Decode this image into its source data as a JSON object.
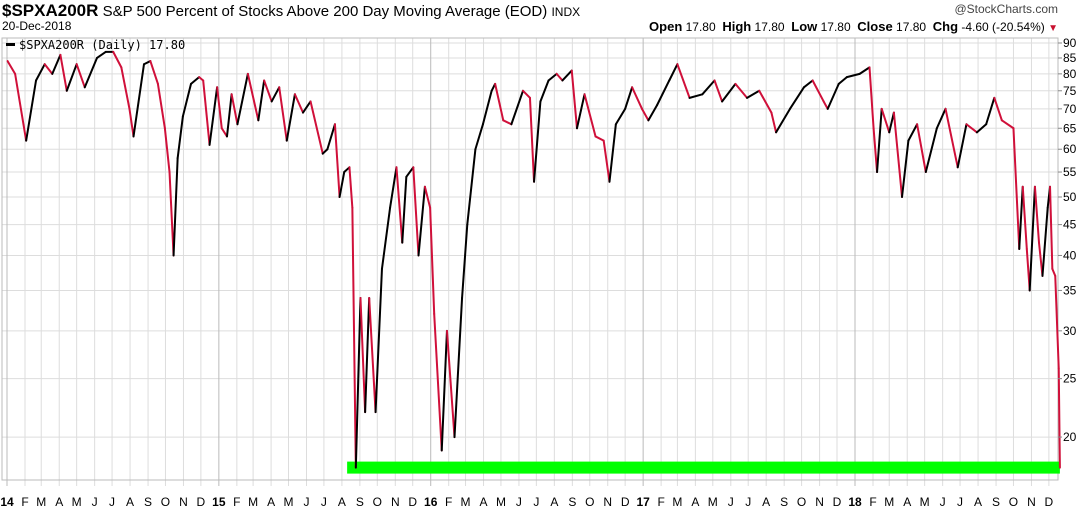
{
  "header": {
    "symbol": "$SPXA200R",
    "description": "S&P 500 Percent of Stocks Above 200 Day Moving Average (EOD)",
    "exchange": "INDX",
    "date": "20-Dec-2018",
    "copyright": "@StockCharts.com",
    "open_label": "Open",
    "open": "17.80",
    "high_label": "High",
    "high": "17.80",
    "low_label": "Low",
    "low": "17.80",
    "close_label": "Close",
    "close": "17.80",
    "chg_label": "Chg",
    "chg": "-4.60 (-20.54%)",
    "chg_direction": "down"
  },
  "legend": {
    "text": "$SPXA200R (Daily) 17.80"
  },
  "colors": {
    "up": "#000000",
    "down": "#d0103a",
    "band": "#00ff00",
    "grid": "#dddddd"
  },
  "chart_data": {
    "type": "line",
    "yscale": "log",
    "ylim": [
      16.5,
      92
    ],
    "xlim": [
      "2014-01-01",
      "2018-12-20"
    ],
    "grid": true,
    "legend_placement": "top-left",
    "yticks": [
      20,
      25,
      30,
      35,
      40,
      45,
      50,
      55,
      60,
      65,
      70,
      75,
      80,
      85,
      90
    ],
    "xtick_labels": [
      "14",
      "F",
      "M",
      "A",
      "M",
      "J",
      "J",
      "A",
      "S",
      "O",
      "N",
      "D",
      "15",
      "F",
      "M",
      "A",
      "M",
      "J",
      "J",
      "A",
      "S",
      "O",
      "N",
      "D",
      "16",
      "F",
      "M",
      "A",
      "M",
      "J",
      "J",
      "A",
      "S",
      "O",
      "N",
      "D",
      "17",
      "F",
      "M",
      "A",
      "M",
      "J",
      "J",
      "A",
      "S",
      "O",
      "N",
      "D",
      "18",
      "F",
      "M",
      "A",
      "M",
      "J",
      "J",
      "A",
      "S",
      "O",
      "N",
      "D"
    ],
    "band": {
      "value": 17.8,
      "from": "2015-08-10",
      "to": "2018-12-20"
    },
    "series": [
      {
        "points": [
          [
            "2014-01-02",
            84
          ],
          [
            "2014-01-15",
            80
          ],
          [
            "2014-02-03",
            62
          ],
          [
            "2014-02-20",
            78
          ],
          [
            "2014-03-07",
            83
          ],
          [
            "2014-03-20",
            80
          ],
          [
            "2014-04-03",
            86
          ],
          [
            "2014-04-14",
            75
          ],
          [
            "2014-05-01",
            83
          ],
          [
            "2014-05-15",
            76
          ],
          [
            "2014-06-05",
            85
          ],
          [
            "2014-06-20",
            87
          ],
          [
            "2014-07-03",
            87
          ],
          [
            "2014-07-17",
            82
          ],
          [
            "2014-07-31",
            70
          ],
          [
            "2014-08-07",
            63
          ],
          [
            "2014-08-25",
            83
          ],
          [
            "2014-09-05",
            84
          ],
          [
            "2014-09-18",
            77
          ],
          [
            "2014-09-30",
            65
          ],
          [
            "2014-10-08",
            55
          ],
          [
            "2014-10-15",
            40
          ],
          [
            "2014-10-22",
            58
          ],
          [
            "2014-10-31",
            68
          ],
          [
            "2014-11-14",
            77
          ],
          [
            "2014-11-28",
            79
          ],
          [
            "2014-12-05",
            78
          ],
          [
            "2014-12-16",
            61
          ],
          [
            "2014-12-29",
            76
          ],
          [
            "2015-01-06",
            65
          ],
          [
            "2015-01-15",
            63
          ],
          [
            "2015-01-23",
            74
          ],
          [
            "2015-02-02",
            66
          ],
          [
            "2015-02-20",
            80
          ],
          [
            "2015-03-10",
            67
          ],
          [
            "2015-03-20",
            78
          ],
          [
            "2015-04-02",
            72
          ],
          [
            "2015-04-15",
            76
          ],
          [
            "2015-04-28",
            62
          ],
          [
            "2015-05-12",
            74
          ],
          [
            "2015-05-26",
            69
          ],
          [
            "2015-06-08",
            72
          ],
          [
            "2015-06-29",
            59
          ],
          [
            "2015-07-07",
            60
          ],
          [
            "2015-07-20",
            66
          ],
          [
            "2015-07-28",
            50
          ],
          [
            "2015-08-05",
            55
          ],
          [
            "2015-08-14",
            56
          ],
          [
            "2015-08-19",
            48
          ],
          [
            "2015-08-25",
            17.8
          ],
          [
            "2015-09-02",
            34
          ],
          [
            "2015-09-10",
            22
          ],
          [
            "2015-09-17",
            34
          ],
          [
            "2015-09-28",
            22
          ],
          [
            "2015-10-09",
            38
          ],
          [
            "2015-10-23",
            48
          ],
          [
            "2015-11-03",
            56
          ],
          [
            "2015-11-13",
            42
          ],
          [
            "2015-11-20",
            54
          ],
          [
            "2015-12-02",
            56
          ],
          [
            "2015-12-11",
            40
          ],
          [
            "2015-12-22",
            52
          ],
          [
            "2015-12-31",
            48
          ],
          [
            "2016-01-07",
            32
          ],
          [
            "2016-01-20",
            19
          ],
          [
            "2016-01-29",
            30
          ],
          [
            "2016-02-11",
            20
          ],
          [
            "2016-02-24",
            34
          ],
          [
            "2016-03-04",
            45
          ],
          [
            "2016-03-18",
            60
          ],
          [
            "2016-03-31",
            66
          ],
          [
            "2016-04-15",
            75
          ],
          [
            "2016-04-21",
            77
          ],
          [
            "2016-05-05",
            67
          ],
          [
            "2016-05-19",
            66
          ],
          [
            "2016-06-08",
            75
          ],
          [
            "2016-06-20",
            73
          ],
          [
            "2016-06-27",
            53
          ],
          [
            "2016-07-08",
            72
          ],
          [
            "2016-07-22",
            78
          ],
          [
            "2016-08-05",
            80
          ],
          [
            "2016-08-15",
            78
          ],
          [
            "2016-08-31",
            81
          ],
          [
            "2016-09-09",
            65
          ],
          [
            "2016-09-22",
            74
          ],
          [
            "2016-10-11",
            63
          ],
          [
            "2016-10-25",
            62
          ],
          [
            "2016-11-04",
            53
          ],
          [
            "2016-11-15",
            66
          ],
          [
            "2016-12-01",
            70
          ],
          [
            "2016-12-13",
            76
          ],
          [
            "2016-12-30",
            70
          ],
          [
            "2017-01-10",
            67
          ],
          [
            "2017-01-25",
            71
          ],
          [
            "2017-02-15",
            78
          ],
          [
            "2017-03-01",
            83
          ],
          [
            "2017-03-22",
            73
          ],
          [
            "2017-04-13",
            74
          ],
          [
            "2017-05-04",
            78
          ],
          [
            "2017-05-17",
            72
          ],
          [
            "2017-06-09",
            77
          ],
          [
            "2017-06-29",
            73
          ],
          [
            "2017-07-20",
            75
          ],
          [
            "2017-08-10",
            69
          ],
          [
            "2017-08-18",
            64
          ],
          [
            "2017-09-11",
            70
          ],
          [
            "2017-10-05",
            76
          ],
          [
            "2017-10-20",
            78
          ],
          [
            "2017-11-08",
            72
          ],
          [
            "2017-11-15",
            70
          ],
          [
            "2017-12-04",
            77
          ],
          [
            "2017-12-18",
            79
          ],
          [
            "2018-01-09",
            80
          ],
          [
            "2018-01-26",
            82
          ],
          [
            "2018-02-02",
            65
          ],
          [
            "2018-02-08",
            55
          ],
          [
            "2018-02-16",
            70
          ],
          [
            "2018-03-01",
            64
          ],
          [
            "2018-03-09",
            69
          ],
          [
            "2018-03-23",
            50
          ],
          [
            "2018-04-03",
            62
          ],
          [
            "2018-04-18",
            66
          ],
          [
            "2018-05-03",
            55
          ],
          [
            "2018-05-22",
            65
          ],
          [
            "2018-06-06",
            70
          ],
          [
            "2018-06-27",
            56
          ],
          [
            "2018-07-12",
            66
          ],
          [
            "2018-07-30",
            64
          ],
          [
            "2018-08-15",
            66
          ],
          [
            "2018-08-29",
            73
          ],
          [
            "2018-09-11",
            67
          ],
          [
            "2018-10-01",
            65
          ],
          [
            "2018-10-11",
            41
          ],
          [
            "2018-10-17",
            52
          ],
          [
            "2018-10-24",
            41
          ],
          [
            "2018-10-29",
            35
          ],
          [
            "2018-11-07",
            52
          ],
          [
            "2018-11-14",
            42
          ],
          [
            "2018-11-20",
            37
          ],
          [
            "2018-11-29",
            48
          ],
          [
            "2018-12-03",
            52
          ],
          [
            "2018-12-07",
            38
          ],
          [
            "2018-12-12",
            37
          ],
          [
            "2018-12-18",
            26
          ],
          [
            "2018-12-20",
            17.8
          ]
        ]
      }
    ]
  }
}
